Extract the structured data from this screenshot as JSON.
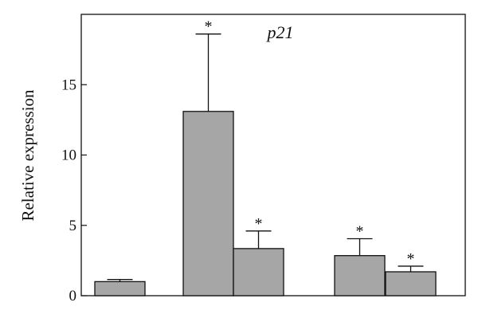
{
  "chart_data": {
    "type": "bar",
    "title": "p21",
    "xlabel": "",
    "ylabel": "Relative expression",
    "ylim": [
      0,
      20
    ],
    "yticks": [
      0,
      5,
      10,
      15
    ],
    "grid": false,
    "bar_color": "#a6a6a6",
    "bar_edge_color": "#111111",
    "bars": [
      {
        "value": 1.0,
        "error": 0.15,
        "annotation": ""
      },
      {
        "value": 13.1,
        "error": 5.5,
        "annotation": "*"
      },
      {
        "value": 3.35,
        "error": 1.25,
        "annotation": "*"
      },
      {
        "value": 2.85,
        "error": 1.2,
        "annotation": "*"
      },
      {
        "value": 1.7,
        "error": 0.4,
        "annotation": "*"
      }
    ]
  }
}
